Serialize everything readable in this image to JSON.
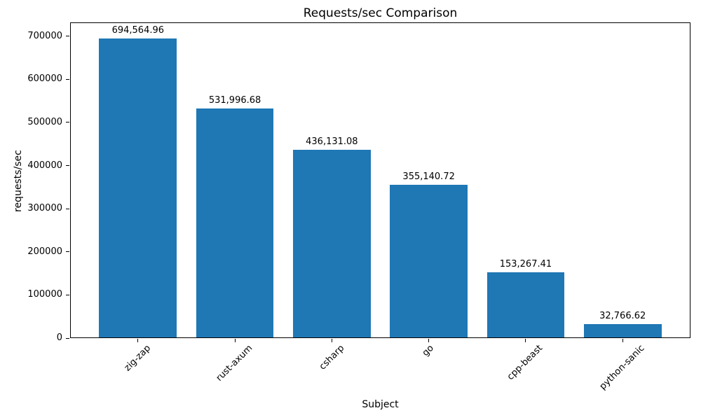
{
  "chart_data": {
    "type": "bar",
    "title": "Requests/sec Comparison",
    "xlabel": "Subject",
    "ylabel": "requests/sec",
    "categories": [
      "zig-zap",
      "rust-axum",
      "csharp",
      "go",
      "cpp-beast",
      "python-sanic"
    ],
    "values": [
      694564.96,
      531996.68,
      436131.08,
      355140.72,
      153267.41,
      32766.62
    ],
    "value_labels": [
      "694,564.96",
      "531,996.68",
      "436,131.08",
      "355,140.72",
      "153,267.41",
      "32,766.62"
    ],
    "yticks": [
      0,
      100000,
      200000,
      300000,
      400000,
      500000,
      600000,
      700000
    ],
    "ylim": [
      0,
      732000
    ],
    "bar_color": "#1f77b4",
    "background_color": "#ffffff",
    "axis_color": "#000000",
    "grid": false,
    "legend": null,
    "x_tick_rotation": 45
  }
}
